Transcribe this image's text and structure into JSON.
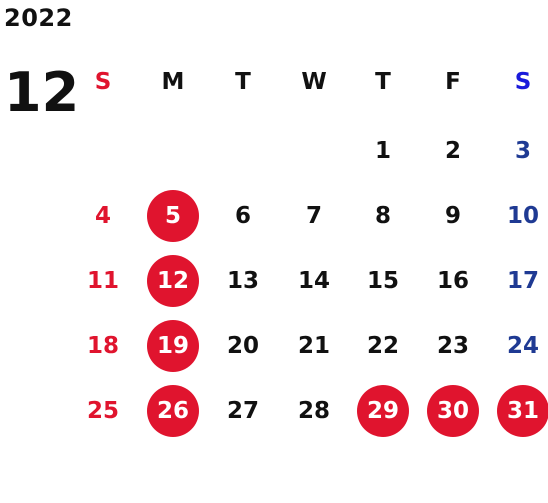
{
  "year": "2022",
  "month": "12",
  "colors": {
    "sunday": "#e0142e",
    "saturday": "#1f3a93",
    "saturday_header": "#1a1adb",
    "highlight": "#e0142e"
  },
  "weekdays": [
    "S",
    "M",
    "T",
    "W",
    "T",
    "F",
    "S"
  ],
  "weeks": [
    [
      "",
      "",
      "",
      "",
      "1",
      "2",
      "3"
    ],
    [
      "4",
      "5",
      "6",
      "7",
      "8",
      "9",
      "10"
    ],
    [
      "11",
      "12",
      "13",
      "14",
      "15",
      "16",
      "17"
    ],
    [
      "18",
      "19",
      "20",
      "21",
      "22",
      "23",
      "24"
    ],
    [
      "25",
      "26",
      "27",
      "28",
      "29",
      "30",
      "31"
    ]
  ],
  "highlighted_days": [
    "5",
    "12",
    "19",
    "26",
    "29",
    "30",
    "31"
  ]
}
